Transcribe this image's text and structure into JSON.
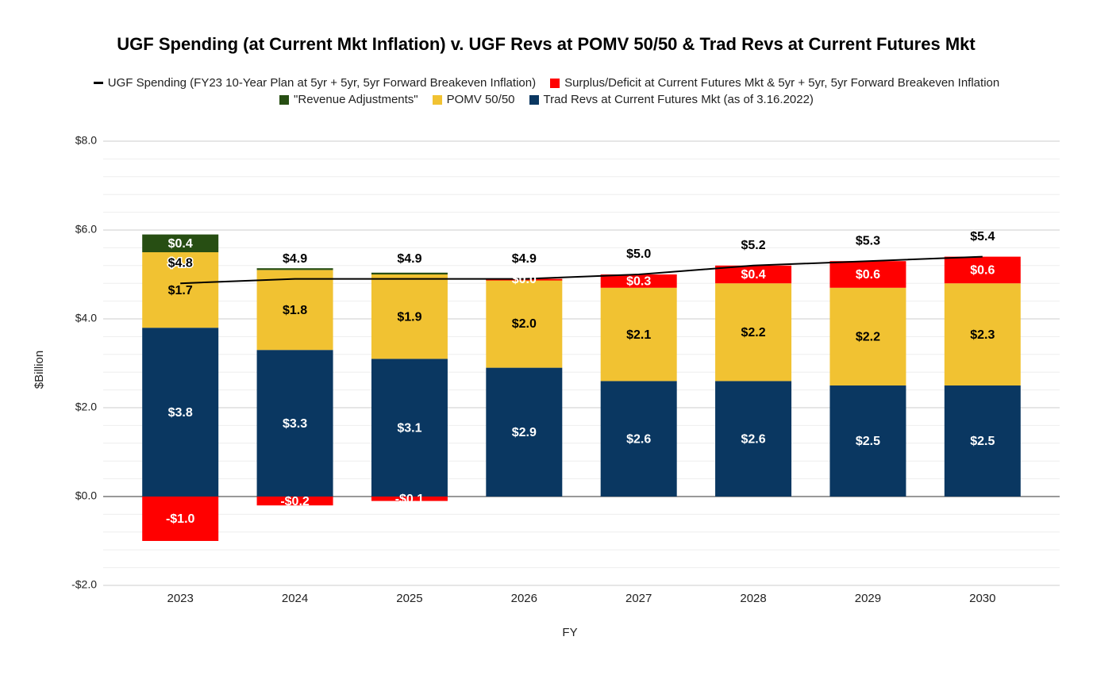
{
  "chart_data": {
    "type": "bar",
    "title": "UGF Spending (at Current Mkt Inflation) v. UGF Revs at POMV 50/50 & Trad Revs at Current Futures Mkt",
    "x_label": "FY",
    "y_label": "$Billion",
    "stacked": true,
    "categories": [
      "2023",
      "2024",
      "2025",
      "2026",
      "2027",
      "2028",
      "2029",
      "2030"
    ],
    "series": [
      {
        "name": "UGF Spending (FY23 10-Year Plan at 5yr + 5yr, 5yr Forward Breakeven Inflation)",
        "type": "line",
        "color": "#000000",
        "label_color": "#000000",
        "values": [
          4.8,
          4.9,
          4.9,
          4.9,
          5.0,
          5.2,
          5.3,
          5.4
        ],
        "value_labels": [
          "$4.8",
          "$4.9",
          "$4.9",
          "$4.9",
          "$5.0",
          "$5.2",
          "$5.3",
          "$5.4"
        ]
      },
      {
        "name": "Surplus/Deficit at Current Futures Mkt & 5yr + 5yr, 5yr Forward Breakeven Inflation",
        "color": "#ff0000",
        "label_color": "#ffffff",
        "values": [
          -1.0,
          -0.2,
          -0.1,
          0.0,
          0.3,
          0.4,
          0.6,
          0.6
        ],
        "value_labels": [
          "-$1.0",
          "-$0.2",
          "-$0.1",
          "$0.0",
          "$0.3",
          "$0.4",
          "$0.6",
          "$0.6"
        ]
      },
      {
        "name": "\"Revenue Adjustments\"",
        "color": "#274e13",
        "label_color": "#ffffff",
        "values": [
          0.4,
          0.04,
          0.04,
          0.0,
          0,
          0,
          0,
          0
        ],
        "value_labels": [
          "$0.4",
          null,
          null,
          null,
          null,
          null,
          null,
          null
        ]
      },
      {
        "name": "POMV 50/50",
        "color": "#f1c232",
        "label_color": "#000000",
        "values": [
          1.7,
          1.8,
          1.9,
          2.0,
          2.1,
          2.2,
          2.2,
          2.3
        ],
        "value_labels": [
          "$1.7",
          "$1.8",
          "$1.9",
          "$2.0",
          "$2.1",
          "$2.2",
          "$2.2",
          "$2.3"
        ]
      },
      {
        "name": "Trad Revs at Current Futures Mkt (as of 3.16.2022)",
        "color": "#0a3761",
        "label_color": "#ffffff",
        "values": [
          3.8,
          3.3,
          3.1,
          2.9,
          2.6,
          2.6,
          2.5,
          2.5
        ],
        "value_labels": [
          "$3.8",
          "$3.3",
          "$3.1",
          "$2.9",
          "$2.6",
          "$2.6",
          "$2.5",
          "$2.5"
        ]
      }
    ],
    "ylim": [
      -2,
      8
    ],
    "yticks": [
      {
        "value": -2,
        "label": "-$2.0"
      },
      {
        "value": 0,
        "label": "$0.0"
      },
      {
        "value": 2,
        "label": "$2.0"
      },
      {
        "value": 4,
        "label": "$4.0"
      },
      {
        "value": 6,
        "label": "$6.0"
      },
      {
        "value": 8,
        "label": "$8.0"
      }
    ],
    "minor_yticks": [
      -1.6,
      -1.2,
      -0.8,
      -0.4,
      0.4,
      0.8,
      1.2,
      1.6,
      2.4,
      2.8,
      3.2,
      3.6,
      4.4,
      4.8,
      5.2,
      5.6,
      6.4,
      6.8,
      7.2,
      7.6
    ],
    "grid": true,
    "legend": "top"
  }
}
